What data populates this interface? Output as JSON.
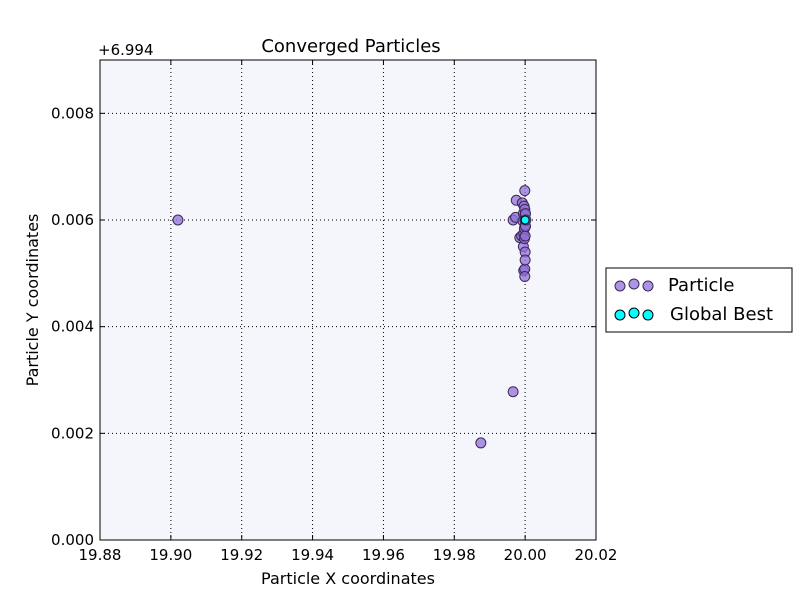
{
  "chart_data": {
    "type": "scatter",
    "title": "Converged Particles",
    "xlabel": "Particle X coordinates",
    "ylabel": "Particle Y coordinates",
    "y_offset_label": "+6.994",
    "xlim": [
      19.88,
      20.02
    ],
    "ylim": [
      0.0,
      0.009
    ],
    "x_ticks": [
      "19.88",
      "19.90",
      "19.92",
      "19.94",
      "19.96",
      "19.98",
      "20.00",
      "20.02"
    ],
    "y_ticks": [
      "0.000",
      "0.002",
      "0.004",
      "0.006",
      "0.008"
    ],
    "grid": true,
    "legend_position": "outside-right",
    "background_color": "#f5f6fb",
    "series": [
      {
        "name": "Particle",
        "color": "#9370db",
        "points": [
          {
            "x": 19.902,
            "y": 0.006
          },
          {
            "x": 19.9875,
            "y": 0.00182
          },
          {
            "x": 19.9966,
            "y": 0.00278
          },
          {
            "x": 19.9966,
            "y": 0.006
          },
          {
            "x": 19.9973,
            "y": 0.00605
          },
          {
            "x": 19.9975,
            "y": 0.00637
          },
          {
            "x": 19.9985,
            "y": 0.00567
          },
          {
            "x": 19.999,
            "y": 0.0057
          },
          {
            "x": 19.9992,
            "y": 0.00632
          },
          {
            "x": 19.9994,
            "y": 0.00598
          },
          {
            "x": 19.9995,
            "y": 0.00612
          },
          {
            "x": 19.9995,
            "y": 0.0055
          },
          {
            "x": 19.9996,
            "y": 0.00505
          },
          {
            "x": 19.9996,
            "y": 0.00575
          },
          {
            "x": 19.9997,
            "y": 0.00626
          },
          {
            "x": 19.9998,
            "y": 0.00584
          },
          {
            "x": 19.9998,
            "y": 0.00565
          },
          {
            "x": 19.9999,
            "y": 0.00655
          },
          {
            "x": 19.9999,
            "y": 0.0062
          },
          {
            "x": 19.9999,
            "y": 0.00508
          },
          {
            "x": 19.9999,
            "y": 0.00494
          },
          {
            "x": 20.0,
            "y": 0.0054
          },
          {
            "x": 20.0,
            "y": 0.00525
          },
          {
            "x": 20.0,
            "y": 0.0059
          },
          {
            "x": 20.0,
            "y": 0.0061
          },
          {
            "x": 20.0,
            "y": 0.0057
          },
          {
            "x": 20.0,
            "y": 0.006
          },
          {
            "x": 20.0001,
            "y": 0.00612
          },
          {
            "x": 20.0001,
            "y": 0.00588
          },
          {
            "x": 20.0002,
            "y": 0.006
          }
        ]
      },
      {
        "name": "Global Best",
        "color": "#00ffff",
        "points": [
          {
            "x": 20.0,
            "y": 0.006
          }
        ]
      }
    ]
  }
}
